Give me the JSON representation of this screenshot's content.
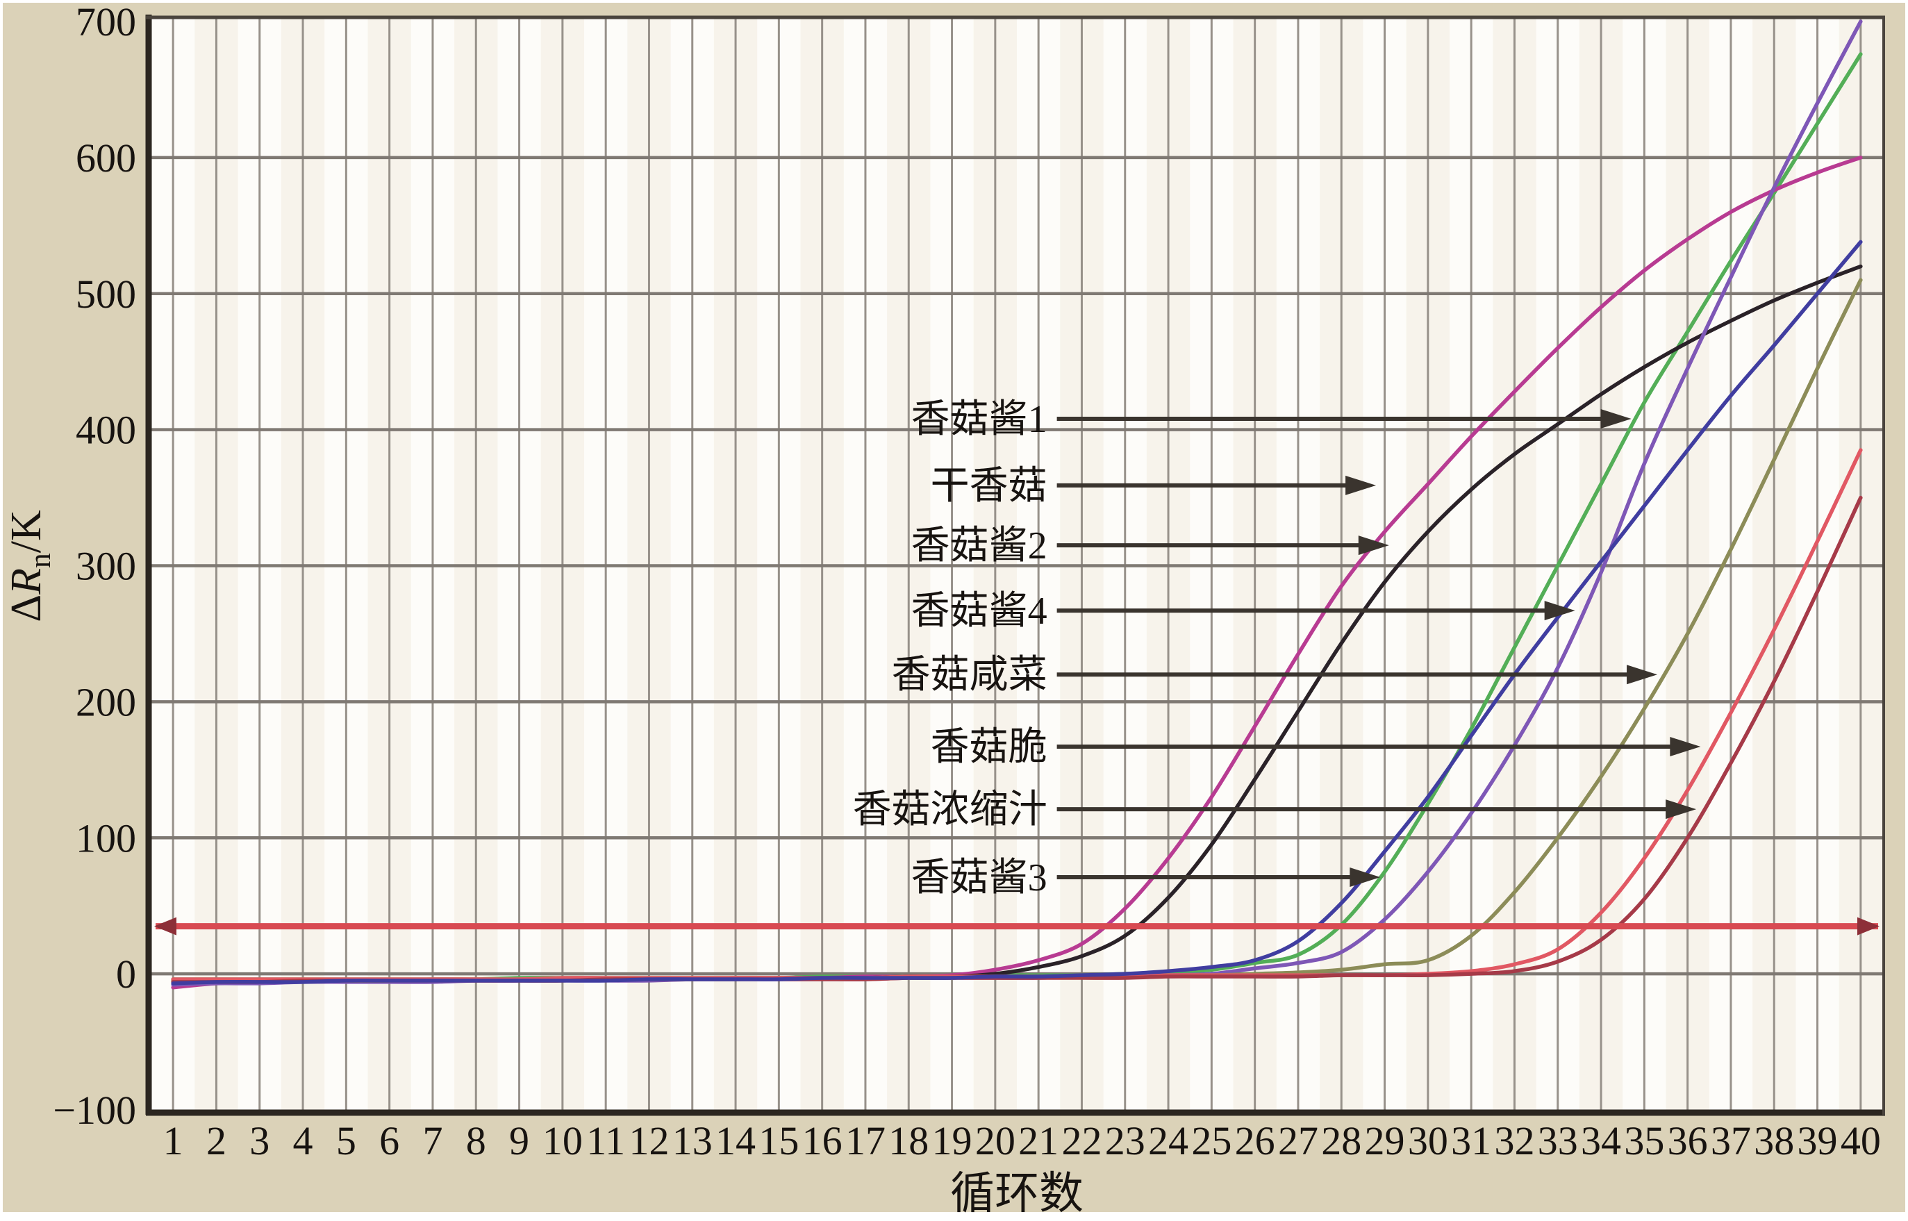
{
  "figure": {
    "panel_background": "#dbd2b8",
    "plot_background": "#fdfcf9",
    "stripe_color": "#efe8d9",
    "grid_vertical_color": "#97918a",
    "grid_horizontal_color": "#7f7973",
    "border_color": "#2b2620",
    "text_color": "#171310",
    "annotation_arrow_color": "#3a342e"
  },
  "chart_data": {
    "type": "line",
    "title": "",
    "xlabel": "循环数",
    "ylabel": "ΔRn/K",
    "ylabel_rich": [
      {
        "text": "Δ",
        "style": "normal"
      },
      {
        "text": "R",
        "style": "italic"
      },
      {
        "text": "n",
        "style": "subscript"
      },
      {
        "text": "/K",
        "style": "normal"
      }
    ],
    "xlim": [
      0.5,
      40.5
    ],
    "ylim": [
      -100,
      700
    ],
    "x_ticks": [
      1,
      2,
      3,
      4,
      5,
      6,
      7,
      8,
      9,
      10,
      11,
      12,
      13,
      14,
      15,
      16,
      17,
      18,
      19,
      20,
      21,
      22,
      23,
      24,
      25,
      26,
      27,
      28,
      29,
      30,
      31,
      32,
      33,
      34,
      35,
      36,
      37,
      38,
      39,
      40
    ],
    "y_ticks": [
      700,
      600,
      500,
      400,
      300,
      200,
      100,
      0,
      -100
    ],
    "y_tick_labels": [
      "700",
      "600",
      "500",
      "400",
      "300",
      "200",
      "100",
      "0",
      "−100"
    ],
    "grid": true,
    "legend_position": "inline-arrows",
    "threshold": {
      "value": 35,
      "color": "#d84a52",
      "double_arrow": true
    },
    "series": [
      {
        "name": "香菇酱1",
        "color": "#53ae57",
        "values": [
          -4,
          -4,
          -4,
          -4,
          -4,
          -4,
          -4,
          -4,
          -3,
          -3,
          -3,
          -3,
          -3,
          -3,
          -3,
          -2,
          -2,
          -2,
          -2,
          -1,
          -1,
          -1,
          0,
          1,
          3,
          8,
          14,
          36,
          75,
          125,
          180,
          240,
          300,
          360,
          420,
          472,
          524,
          574,
          625,
          676
        ]
      },
      {
        "name": "干香菇",
        "color": "#b83b92",
        "values": [
          -10,
          -7,
          -6,
          -5,
          -5,
          -5,
          -5,
          -5,
          -5,
          -4,
          -4,
          -4,
          -4,
          -3,
          -3,
          -3,
          -2,
          -2,
          -1,
          3,
          10,
          22,
          48,
          85,
          130,
          182,
          235,
          285,
          325,
          360,
          395,
          428,
          460,
          490,
          517,
          540,
          560,
          576,
          589,
          600
        ]
      },
      {
        "name": "香菇酱2",
        "color": "#2a2228",
        "values": [
          -6,
          -6,
          -5,
          -5,
          -5,
          -5,
          -5,
          -5,
          -5,
          -5,
          -4,
          -4,
          -4,
          -4,
          -3,
          -3,
          -3,
          -2,
          -2,
          0,
          5,
          13,
          28,
          56,
          95,
          143,
          193,
          243,
          288,
          325,
          356,
          382,
          404,
          426,
          446,
          464,
          480,
          495,
          508,
          520
        ]
      },
      {
        "name": "香菇酱4",
        "color": "#7e57b6",
        "values": [
          -8,
          -7,
          -7,
          -6,
          -6,
          -6,
          -6,
          -5,
          -5,
          -5,
          -5,
          -5,
          -4,
          -4,
          -4,
          -4,
          -4,
          -3,
          -3,
          -3,
          -3,
          -2,
          -2,
          -1,
          0,
          4,
          8,
          16,
          40,
          75,
          118,
          168,
          225,
          295,
          375,
          445,
          512,
          578,
          640,
          700
        ]
      },
      {
        "name": "香菇咸菜",
        "color": "#8c8c58",
        "values": [
          -5,
          -5,
          -5,
          -5,
          -5,
          -5,
          -4,
          -4,
          -4,
          -4,
          -4,
          -4,
          -4,
          -3,
          -3,
          -3,
          -3,
          -3,
          -3,
          -2,
          -2,
          -2,
          -2,
          -1,
          -1,
          0,
          1,
          3,
          7,
          10,
          28,
          60,
          100,
          145,
          195,
          250,
          312,
          378,
          445,
          510
        ]
      },
      {
        "name": "香菇脆",
        "color": "#e15863",
        "values": [
          -4,
          -4,
          -4,
          -4,
          -4,
          -4,
          -4,
          -4,
          -4,
          -3,
          -3,
          -3,
          -3,
          -3,
          -3,
          -3,
          -3,
          -2,
          -2,
          -2,
          -2,
          -2,
          -2,
          -1,
          -1,
          -1,
          -1,
          -1,
          -1,
          0,
          2,
          7,
          18,
          45,
          85,
          135,
          192,
          253,
          318,
          385
        ]
      },
      {
        "name": "香菇浓缩汁",
        "color": "#a63a48",
        "values": [
          -6,
          -6,
          -6,
          -5,
          -5,
          -5,
          -5,
          -5,
          -5,
          -5,
          -4,
          -4,
          -4,
          -4,
          -4,
          -4,
          -4,
          -3,
          -3,
          -3,
          -3,
          -3,
          -3,
          -2,
          -2,
          -2,
          -2,
          -1,
          -1,
          -1,
          0,
          2,
          9,
          25,
          55,
          100,
          155,
          215,
          281,
          350
        ]
      },
      {
        "name": "香菇酱3",
        "color": "#403da0",
        "values": [
          -7,
          -6,
          -6,
          -6,
          -5,
          -5,
          -5,
          -5,
          -5,
          -5,
          -5,
          -4,
          -4,
          -4,
          -4,
          -3,
          -3,
          -3,
          -3,
          -2,
          -2,
          -1,
          0,
          2,
          5,
          10,
          24,
          52,
          90,
          130,
          175,
          220,
          262,
          303,
          344,
          385,
          425,
          462,
          500,
          538
        ]
      }
    ],
    "annotations": [
      {
        "label": "香菇酱1",
        "value": 408,
        "tip_cycle": 34.7,
        "text_end_cycle": 21.2
      },
      {
        "label": "干香菇",
        "value": 359,
        "tip_cycle": 28.8,
        "text_end_cycle": 21.2
      },
      {
        "label": "香菇酱2",
        "value": 315,
        "tip_cycle": 29.1,
        "text_end_cycle": 21.2
      },
      {
        "label": "香菇酱4",
        "value": 267,
        "tip_cycle": 33.4,
        "text_end_cycle": 21.2
      },
      {
        "label": "香菇咸菜",
        "value": 220,
        "tip_cycle": 35.3,
        "text_end_cycle": 21.2
      },
      {
        "label": "香菇脆",
        "value": 167,
        "tip_cycle": 36.3,
        "text_end_cycle": 21.2
      },
      {
        "label": "香菇浓缩汁",
        "value": 121,
        "tip_cycle": 36.2,
        "text_end_cycle": 21.2
      },
      {
        "label": "香菇酱3",
        "value": 71,
        "tip_cycle": 28.9,
        "text_end_cycle": 21.2
      }
    ]
  }
}
